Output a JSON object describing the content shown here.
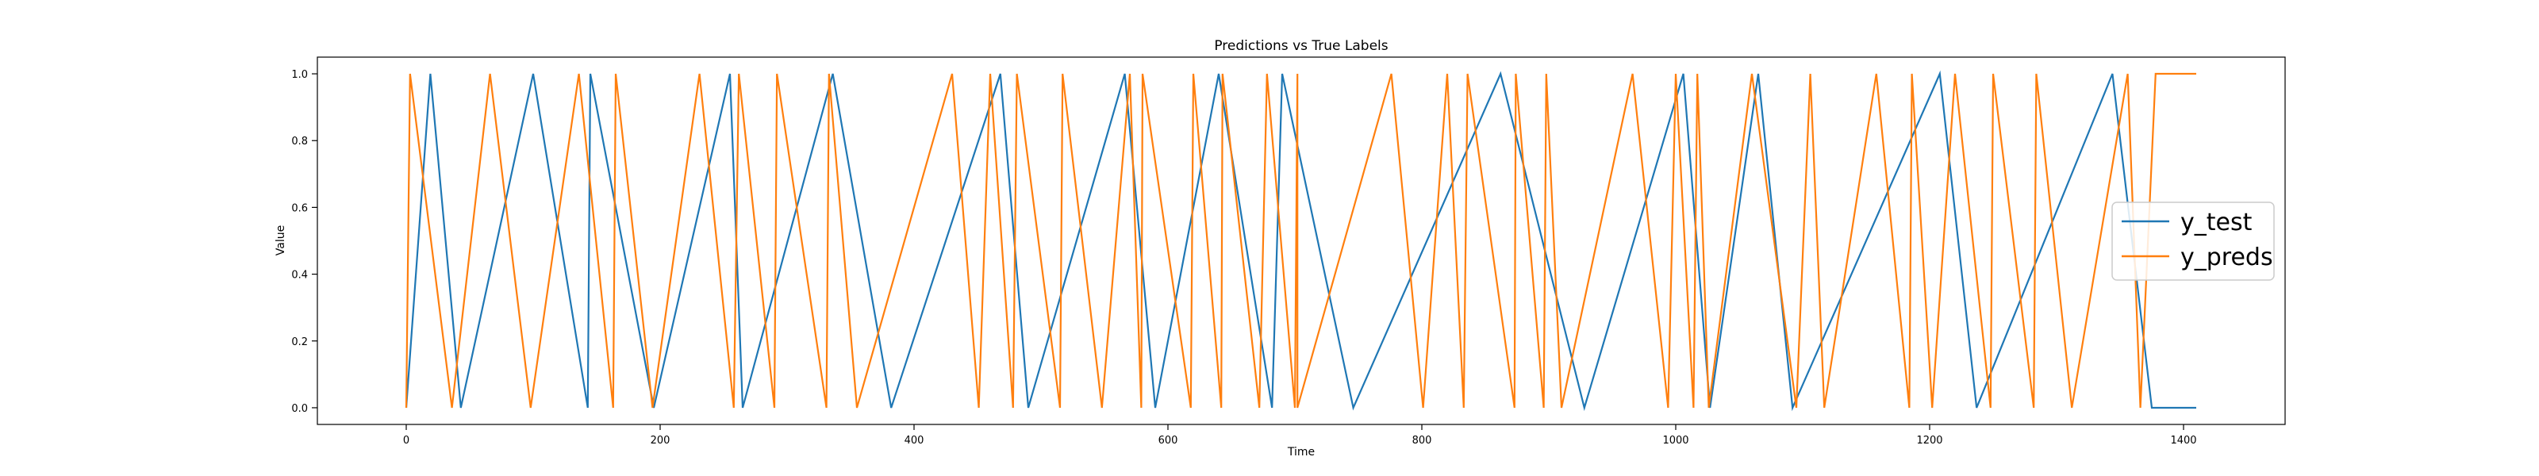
{
  "chart_data": {
    "type": "line",
    "title": "Predictions vs True Labels",
    "xlabel": "Time",
    "ylabel": "Value",
    "xlim": [
      -70,
      1480
    ],
    "ylim": [
      -0.05,
      1.05
    ],
    "xticks": [
      0,
      200,
      400,
      600,
      800,
      1000,
      1200,
      1400
    ],
    "yticks": [
      0.0,
      0.2,
      0.4,
      0.6,
      0.8,
      1.0
    ],
    "xtick_labels": [
      "0",
      "200",
      "400",
      "600",
      "800",
      "1000",
      "1200",
      "1400"
    ],
    "ytick_labels": [
      "0.0",
      "0.2",
      "0.4",
      "0.6",
      "0.8",
      "1.0"
    ],
    "legend_position": "center-right",
    "series": [
      {
        "name": "y_test",
        "color": "#1f77b4",
        "segments": [
          [
            0,
            0
          ],
          [
            19,
            1
          ],
          [
            43,
            0
          ],
          [
            100,
            1
          ],
          [
            143,
            0
          ],
          [
            145,
            1
          ],
          [
            195,
            0
          ],
          [
            255,
            1
          ],
          [
            265,
            0
          ],
          [
            336,
            1
          ],
          [
            382,
            0
          ],
          [
            468,
            1
          ],
          [
            490,
            0
          ],
          [
            566,
            1
          ],
          [
            590,
            0
          ],
          [
            640,
            1
          ],
          [
            682,
            0
          ],
          [
            690,
            1
          ],
          [
            746,
            0
          ],
          [
            862,
            1
          ],
          [
            928,
            0
          ],
          [
            1006,
            1
          ],
          [
            1027,
            0
          ],
          [
            1065,
            1
          ],
          [
            1092,
            0
          ],
          [
            1208,
            1
          ],
          [
            1237,
            0
          ],
          [
            1344,
            1
          ],
          [
            1375,
            0
          ],
          [
            1410,
            0
          ]
        ]
      },
      {
        "name": "y_preds",
        "color": "#ff7f0e",
        "segments": [
          [
            0,
            0
          ],
          [
            3,
            1
          ],
          [
            36,
            0
          ],
          [
            66,
            1
          ],
          [
            98,
            0
          ],
          [
            136,
            1
          ],
          [
            163,
            0
          ],
          [
            165,
            1
          ],
          [
            194,
            0
          ],
          [
            231,
            1
          ],
          [
            258,
            0
          ],
          [
            262,
            1
          ],
          [
            290,
            0
          ],
          [
            292,
            1
          ],
          [
            331,
            0
          ],
          [
            333,
            1
          ],
          [
            355,
            0
          ],
          [
            430,
            1
          ],
          [
            451,
            0
          ],
          [
            460,
            1
          ],
          [
            478,
            0
          ],
          [
            481,
            1
          ],
          [
            515,
            0
          ],
          [
            517,
            1
          ],
          [
            548,
            0
          ],
          [
            570,
            1
          ],
          [
            579,
            0
          ],
          [
            580,
            1
          ],
          [
            618,
            0
          ],
          [
            620,
            1
          ],
          [
            642,
            0
          ],
          [
            643,
            1
          ],
          [
            672,
            0
          ],
          [
            678,
            1
          ],
          [
            700,
            0
          ],
          [
            702,
            1
          ],
          [
            702,
            0
          ],
          [
            776,
            1
          ],
          [
            801,
            0
          ],
          [
            820,
            1
          ],
          [
            833,
            0
          ],
          [
            836,
            1
          ],
          [
            873,
            0
          ],
          [
            874,
            1
          ],
          [
            896,
            0
          ],
          [
            898,
            1
          ],
          [
            910,
            0
          ],
          [
            966,
            1
          ],
          [
            994,
            0
          ],
          [
            1000,
            1
          ],
          [
            1014,
            0
          ],
          [
            1017,
            1
          ],
          [
            1026,
            0
          ],
          [
            1060,
            1
          ],
          [
            1095,
            0
          ],
          [
            1106,
            1
          ],
          [
            1117,
            0
          ],
          [
            1158,
            1
          ],
          [
            1184,
            0
          ],
          [
            1186,
            1
          ],
          [
            1202,
            0
          ],
          [
            1220,
            1
          ],
          [
            1248,
            0
          ],
          [
            1250,
            1
          ],
          [
            1282,
            0
          ],
          [
            1284,
            1
          ],
          [
            1312,
            0
          ],
          [
            1356,
            1
          ],
          [
            1366,
            0
          ],
          [
            1378,
            1
          ],
          [
            1410,
            1
          ]
        ]
      }
    ]
  }
}
